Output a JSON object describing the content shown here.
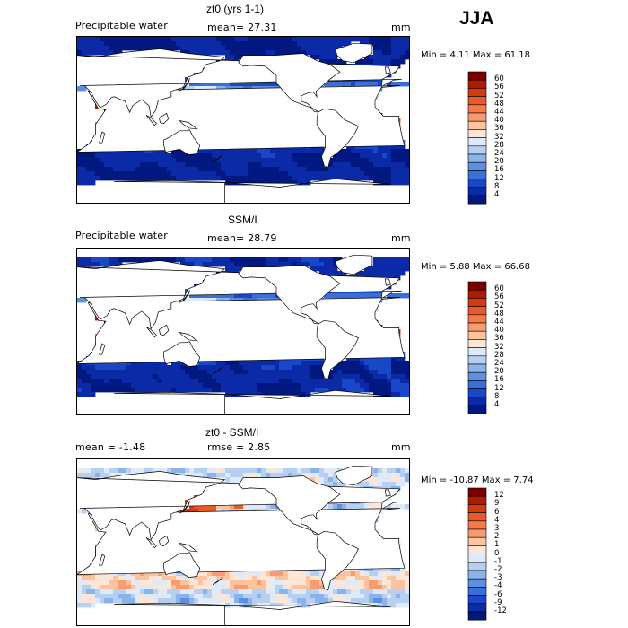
{
  "season": "JJA",
  "panels": [
    {
      "title": "zt0 (yrs 1-1)",
      "left_label": "Precipitable water",
      "center_label": "mean=  27.31",
      "unit": "mm",
      "min_max": "Min =    4.11 Max =  61.18",
      "colorbar": {
        "labels": [
          "60",
          "56",
          "52",
          "48",
          "44",
          "40",
          "36",
          "32",
          "28",
          "24",
          "20",
          "16",
          "12",
          "8",
          "4"
        ],
        "colors": [
          "#7a0000",
          "#b01a00",
          "#d23a10",
          "#e85a28",
          "#f57a48",
          "#f89c70",
          "#fbc3a0",
          "#fde6d6",
          "#dfeaf8",
          "#b7d0f2",
          "#8cb2ea",
          "#5f8fe0",
          "#3a6fd8",
          "#1848c8",
          "#0a2aa8",
          "#001880"
        ]
      },
      "field": "pw_model"
    },
    {
      "title": "SSM/I",
      "left_label": "Precipitable water",
      "center_label": "mean=  28.79",
      "unit": "mm",
      "min_max": "Min =    5.88 Max =  66.68",
      "colorbar": {
        "labels": [
          "60",
          "56",
          "52",
          "48",
          "44",
          "40",
          "36",
          "32",
          "28",
          "24",
          "20",
          "16",
          "12",
          "8",
          "4"
        ],
        "colors": [
          "#7a0000",
          "#b01a00",
          "#d23a10",
          "#e85a28",
          "#f57a48",
          "#f89c70",
          "#fbc3a0",
          "#fde6d6",
          "#dfeaf8",
          "#b7d0f2",
          "#8cb2ea",
          "#5f8fe0",
          "#3a6fd8",
          "#1848c8",
          "#0a2aa8",
          "#001880"
        ]
      },
      "field": "pw_obs"
    },
    {
      "title": "zt0 - SSM/I",
      "left_label": "mean =   -1.48",
      "center_label": "rmse =    2.85",
      "unit": "mm",
      "min_max": "Min = -10.87 Max =    7.74",
      "colorbar": {
        "labels": [
          "12",
          "9",
          "6",
          "4",
          "3",
          "2",
          "1",
          "0",
          "-1",
          "-2",
          "-3",
          "-4",
          "-6",
          "-9",
          "-12"
        ],
        "colors": [
          "#7a0000",
          "#b01a00",
          "#d23a10",
          "#e85a28",
          "#f57a48",
          "#f89c70",
          "#fbc3a0",
          "#fde6d6",
          "#dfeaf8",
          "#b7d0f2",
          "#8cb2ea",
          "#5f8fe0",
          "#3a6fd8",
          "#1848c8",
          "#0a2aa8",
          "#001880"
        ]
      },
      "field": "pw_diff"
    }
  ]
}
